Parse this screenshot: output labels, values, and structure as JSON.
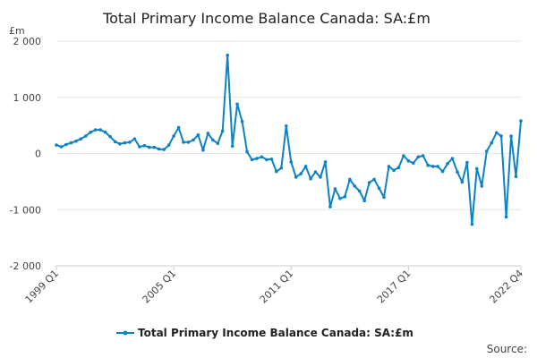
{
  "chart_data": {
    "type": "line",
    "title": "Total Primary Income Balance Canada: SA:£m",
    "unit_label": "£m",
    "ylim": [
      -2000,
      2000
    ],
    "y_ticks": [
      {
        "value": 2000,
        "label": "2 000"
      },
      {
        "value": 1000,
        "label": "1 000"
      },
      {
        "value": 0,
        "label": "0"
      },
      {
        "value": -1000,
        "label": "-1 000"
      },
      {
        "value": -2000,
        "label": "-2 000"
      }
    ],
    "x_ticks": [
      {
        "index": 0,
        "label": "1999 Q1"
      },
      {
        "index": 24,
        "label": "2005 Q1"
      },
      {
        "index": 48,
        "label": "2011 Q1"
      },
      {
        "index": 72,
        "label": "2017 Q1"
      },
      {
        "index": 95,
        "label": "2022 Q4"
      }
    ],
    "grid": true,
    "legend_position": "bottom",
    "source_label": "Source:",
    "series": [
      {
        "name": "Total Primary Income Balance Canada: SA:£m",
        "color": "#0f82c4",
        "x_start": "1999 Q1",
        "x_end": "2022 Q4",
        "frequency": "quarterly",
        "values": [
          150,
          120,
          160,
          190,
          220,
          260,
          310,
          380,
          420,
          420,
          380,
          300,
          210,
          170,
          190,
          200,
          260,
          120,
          140,
          110,
          110,
          80,
          70,
          150,
          310,
          460,
          200,
          200,
          240,
          330,
          60,
          360,
          240,
          180,
          400,
          1750,
          130,
          880,
          570,
          30,
          -110,
          -90,
          -60,
          -110,
          -100,
          -320,
          -260,
          490,
          -150,
          -420,
          -360,
          -230,
          -450,
          -330,
          -420,
          -150,
          -950,
          -630,
          -800,
          -770,
          -460,
          -580,
          -670,
          -840,
          -520,
          -460,
          -620,
          -780,
          -230,
          -300,
          -250,
          -40,
          -130,
          -170,
          -60,
          -40,
          -210,
          -230,
          -230,
          -320,
          -180,
          -90,
          -330,
          -510,
          -160,
          -1260,
          -270,
          -580,
          40,
          190,
          370,
          310,
          -1130,
          310,
          -410,
          580
        ]
      }
    ]
  }
}
